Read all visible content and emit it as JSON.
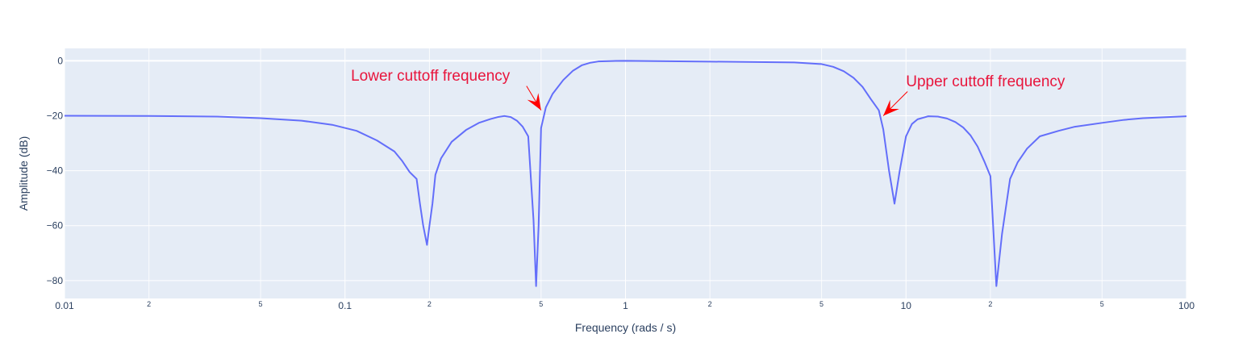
{
  "chart_data": {
    "type": "line",
    "title": "",
    "xlabel": "Frequency (rads / s)",
    "ylabel": "Amplitude (dB)",
    "x_scale": "log",
    "xlim": [
      0.01,
      100
    ],
    "ylim": [
      -86.5,
      4.5
    ],
    "x_ticks_major": [
      "0.01",
      "0.1",
      "1",
      "10",
      "100"
    ],
    "x_ticks_minor": [
      "2",
      "5",
      "2",
      "5",
      "2",
      "5",
      "2",
      "5"
    ],
    "y_ticks": [
      "0",
      "−20",
      "−40",
      "−60",
      "−80"
    ],
    "grid": true,
    "colors": {
      "line": "#636efa",
      "plot_bg": "#e5ecf6",
      "grid": "#ffffff",
      "annotation": "#e8153c",
      "arrow": "#ff0000",
      "text": "#2a3f5f"
    },
    "series": [
      {
        "name": "",
        "x": [
          0.01,
          0.02,
          0.035,
          0.05,
          0.07,
          0.09,
          0.11,
          0.13,
          0.15,
          0.16,
          0.17,
          0.18,
          0.185,
          0.19,
          0.196,
          0.2,
          0.205,
          0.21,
          0.22,
          0.24,
          0.27,
          0.3,
          0.33,
          0.35,
          0.37,
          0.39,
          0.41,
          0.43,
          0.45,
          0.47,
          0.48,
          0.49,
          0.5,
          0.52,
          0.55,
          0.6,
          0.65,
          0.7,
          0.75,
          0.8,
          0.9,
          1.0,
          2.0,
          4.0,
          5.0,
          5.5,
          6.0,
          6.5,
          7.0,
          7.5,
          8.0,
          8.3,
          8.7,
          9.1,
          9.5,
          10.0,
          10.5,
          11.0,
          12.0,
          13.0,
          14.0,
          15.0,
          16.0,
          17.0,
          18.0,
          19.0,
          20.0,
          20.5,
          21.0,
          22.0,
          23.5,
          25.0,
          27.0,
          30.0,
          35.0,
          40.0,
          50.0,
          60.0,
          70.0,
          100.0
        ],
        "y": [
          -20,
          -20.1,
          -20.3,
          -20.9,
          -21.8,
          -23.3,
          -25.5,
          -29,
          -33,
          -36.5,
          -40.5,
          -43,
          -52,
          -60,
          -67,
          -60,
          -52,
          -41.5,
          -35.5,
          -29.5,
          -25.2,
          -22.6,
          -21.2,
          -20.5,
          -20.1,
          -20.5,
          -21.8,
          -24,
          -27.5,
          -58,
          -82,
          -60,
          -24.5,
          -17,
          -12,
          -7,
          -3.6,
          -1.6,
          -0.7,
          -0.25,
          -0.08,
          0,
          -0.3,
          -0.6,
          -1.2,
          -2.2,
          -3.8,
          -6.2,
          -9.5,
          -14,
          -18,
          -25,
          -40,
          -52,
          -40,
          -27.5,
          -23,
          -21.3,
          -20.2,
          -20.3,
          -21,
          -22.3,
          -24.3,
          -27.2,
          -31.2,
          -36.5,
          -42,
          -62,
          -82,
          -63,
          -43,
          -37,
          -32,
          -27.5,
          -25.5,
          -24,
          -22.6,
          -21.5,
          -20.9,
          -20.2
        ]
      }
    ],
    "annotations": [
      {
        "text": "Lower cuttoff frequency",
        "x": 0.5,
        "y": -18,
        "text_anchor_x": 0.105,
        "text_anchor_y": -5.5
      },
      {
        "text": "Upper cuttoff frequency",
        "x": 8.3,
        "y": -20,
        "text_anchor_x": 10.0,
        "text_anchor_y": -7.5
      }
    ]
  }
}
